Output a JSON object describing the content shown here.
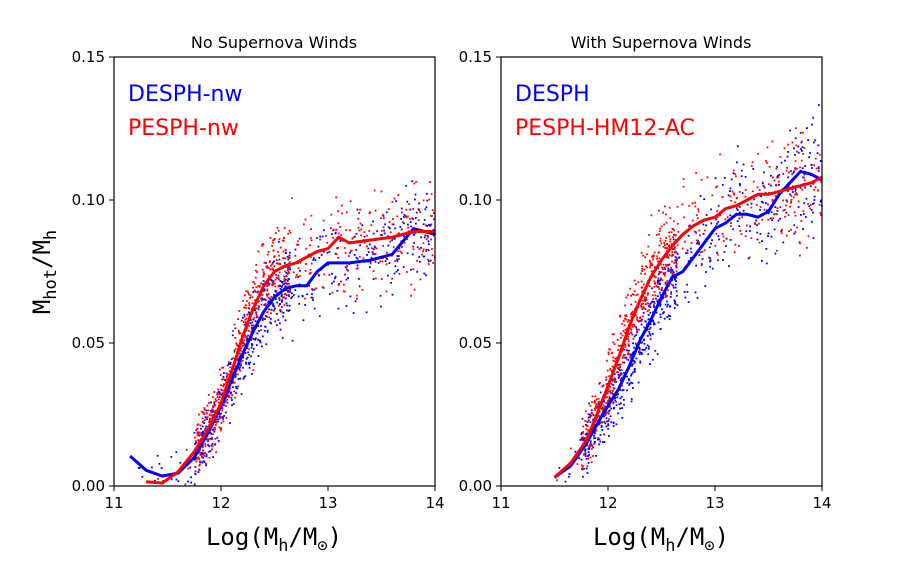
{
  "figure": {
    "ylabel": "M_hot/M_h",
    "xlabel": "Log(M_h/M_⊙)"
  },
  "colors": {
    "blue": "#0000ff",
    "red": "#ff0000"
  },
  "chart_data": [
    {
      "type": "line",
      "title": "No Supernova Winds",
      "xlabel": "Log(M_h/M_⊙)",
      "ylabel": "M_hot/M_h",
      "xlim": [
        11,
        14
      ],
      "ylim": [
        0,
        0.15
      ],
      "xticks": [
        "11",
        "12",
        "13",
        "14"
      ],
      "yticks": [
        "0.00",
        "0.05",
        "0.10",
        "0.15"
      ],
      "grid": false,
      "legend_position": "top-left",
      "series": [
        {
          "name": "DESPH-nw",
          "color": "#0000ff",
          "x": [
            11.15,
            11.3,
            11.45,
            11.6,
            11.75,
            11.9,
            12.0,
            12.1,
            12.2,
            12.3,
            12.4,
            12.5,
            12.6,
            12.7,
            12.8,
            12.9,
            13.0,
            13.2,
            13.4,
            13.6,
            13.8,
            14.0
          ],
          "y": [
            0.0105,
            0.0055,
            0.0035,
            0.0045,
            0.01,
            0.02,
            0.028,
            0.037,
            0.046,
            0.054,
            0.061,
            0.066,
            0.069,
            0.07,
            0.07,
            0.075,
            0.078,
            0.078,
            0.079,
            0.081,
            0.09,
            0.088
          ]
        },
        {
          "name": "PESPH-nw",
          "color": "#ff0000",
          "x": [
            11.3,
            11.45,
            11.6,
            11.75,
            11.9,
            12.0,
            12.1,
            12.2,
            12.3,
            12.4,
            12.5,
            12.6,
            12.7,
            12.8,
            12.9,
            13.0,
            13.1,
            13.2,
            13.4,
            13.6,
            13.8,
            14.0
          ],
          "y": [
            0.0015,
            0.001,
            0.005,
            0.012,
            0.021,
            0.029,
            0.04,
            0.052,
            0.062,
            0.07,
            0.075,
            0.077,
            0.078,
            0.08,
            0.082,
            0.083,
            0.087,
            0.085,
            0.086,
            0.087,
            0.089,
            0.089
          ]
        }
      ]
    },
    {
      "type": "line",
      "title": "With Supernova Winds",
      "xlabel": "Log(M_h/M_⊙)",
      "ylabel": "",
      "xlim": [
        11,
        14
      ],
      "ylim": [
        0,
        0.15
      ],
      "xticks": [
        "11",
        "12",
        "13",
        "14"
      ],
      "yticks": [
        "0.00",
        "0.05",
        "0.10",
        "0.15"
      ],
      "grid": false,
      "legend_position": "top-left",
      "series": [
        {
          "name": "DESPH",
          "color": "#0000ff",
          "x": [
            11.5,
            11.65,
            11.8,
            11.95,
            12.1,
            12.2,
            12.3,
            12.4,
            12.5,
            12.6,
            12.7,
            12.8,
            12.9,
            13.0,
            13.1,
            13.2,
            13.3,
            13.4,
            13.5,
            13.6,
            13.7,
            13.8,
            13.9,
            14.0
          ],
          "y": [
            0.003,
            0.007,
            0.015,
            0.025,
            0.034,
            0.042,
            0.051,
            0.058,
            0.066,
            0.073,
            0.075,
            0.08,
            0.085,
            0.09,
            0.092,
            0.095,
            0.095,
            0.094,
            0.096,
            0.102,
            0.106,
            0.11,
            0.109,
            0.107
          ]
        },
        {
          "name": "PESPH-HM12-AC",
          "color": "#ff0000",
          "x": [
            11.5,
            11.65,
            11.8,
            11.95,
            12.1,
            12.2,
            12.3,
            12.4,
            12.5,
            12.6,
            12.7,
            12.8,
            12.9,
            13.0,
            13.1,
            13.2,
            13.3,
            13.4,
            13.5,
            13.6,
            13.7,
            13.8,
            13.9,
            14.0
          ],
          "y": [
            0.003,
            0.008,
            0.016,
            0.03,
            0.045,
            0.056,
            0.065,
            0.073,
            0.079,
            0.084,
            0.088,
            0.091,
            0.093,
            0.094,
            0.097,
            0.098,
            0.1,
            0.102,
            0.102,
            0.103,
            0.104,
            0.105,
            0.106,
            0.108
          ]
        }
      ]
    }
  ]
}
